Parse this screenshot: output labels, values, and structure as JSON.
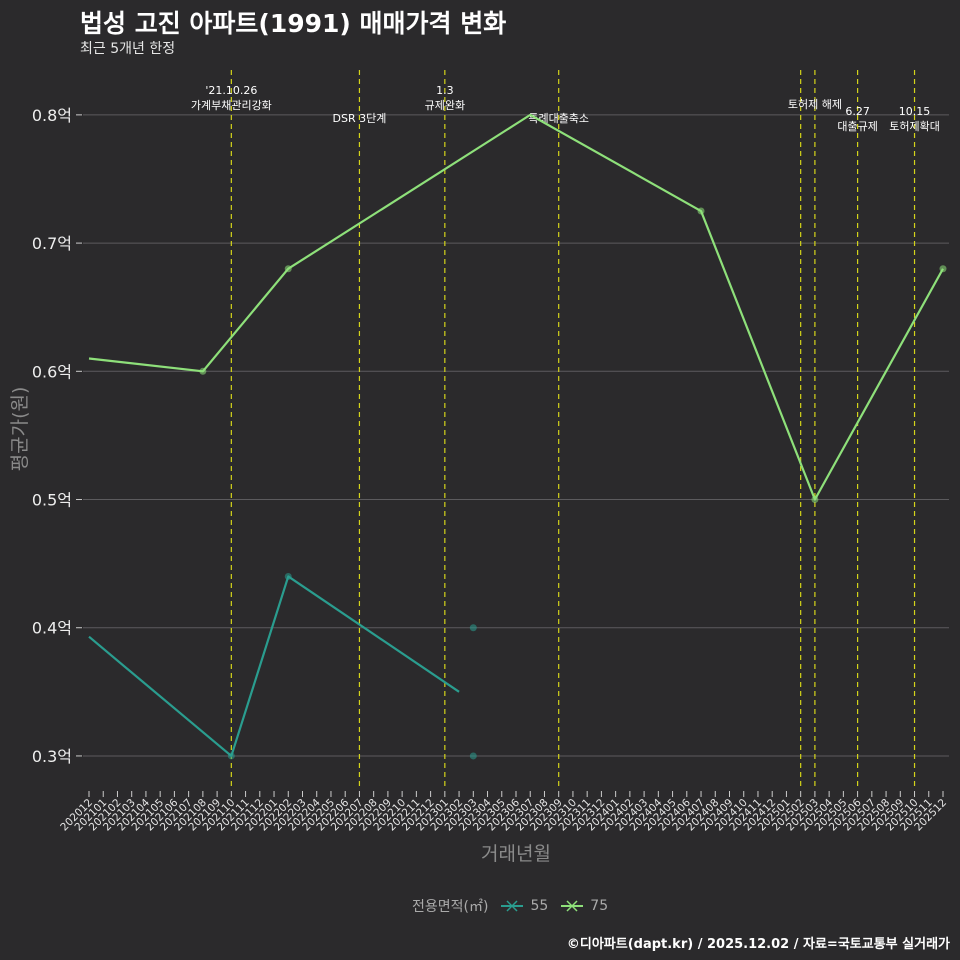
{
  "title": "법성 고진 아파트(1991) 매매가격 변화",
  "subtitle": "최근 5개년 한정",
  "caption": "©디아파트(dapt.kr) / 2025.12.02 / 자료=국토교통부 실거래가",
  "legend": {
    "title": "전용면적(㎡)",
    "entries": [
      {
        "label": "55",
        "color": "#2a9d8f"
      },
      {
        "label": "75",
        "color": "#8ee07a"
      }
    ]
  },
  "chart_data": {
    "type": "line",
    "title": "법성 고진 아파트(1991) 매매가격 변화",
    "xlabel": "거래년월",
    "ylabel": "평균가(원)",
    "ylim": [
      0.275,
      0.835
    ],
    "yticks": [
      {
        "value": 0.3,
        "label": "0.3억"
      },
      {
        "value": 0.4,
        "label": "0.4억"
      },
      {
        "value": 0.5,
        "label": "0.5억"
      },
      {
        "value": 0.6,
        "label": "0.6억"
      },
      {
        "value": 0.7,
        "label": "0.7억"
      },
      {
        "value": 0.8,
        "label": "0.8억"
      }
    ],
    "categories": [
      "202012",
      "202101",
      "202102",
      "202103",
      "202104",
      "202105",
      "202106",
      "202107",
      "202108",
      "202109",
      "202110",
      "202111",
      "202112",
      "202201",
      "202202",
      "202203",
      "202204",
      "202205",
      "202206",
      "202207",
      "202208",
      "202209",
      "202210",
      "202211",
      "202212",
      "202301",
      "202302",
      "202303",
      "202304",
      "202305",
      "202306",
      "202307",
      "202308",
      "202309",
      "202310",
      "202311",
      "202312",
      "202401",
      "202402",
      "202403",
      "202404",
      "202405",
      "202406",
      "202407",
      "202408",
      "202409",
      "202410",
      "202411",
      "202412",
      "202501",
      "202502",
      "202503",
      "202504",
      "202505",
      "202506",
      "202507",
      "202508",
      "202509",
      "202510",
      "202511",
      "202512"
    ],
    "series": [
      {
        "name": "55",
        "color": "#2a9d8f",
        "line": [
          {
            "x": "202012",
            "y": 0.393
          },
          {
            "x": "202110",
            "y": 0.3
          },
          {
            "x": "202202",
            "y": 0.44
          },
          {
            "x": "202302",
            "y": 0.35
          }
        ],
        "points": [
          {
            "x": "202110",
            "y": 0.3
          },
          {
            "x": "202202",
            "y": 0.44
          },
          {
            "x": "202303",
            "y": 0.4
          },
          {
            "x": "202303",
            "y": 0.3
          }
        ]
      },
      {
        "name": "75",
        "color": "#8ee07a",
        "line": [
          {
            "x": "202012",
            "y": 0.61
          },
          {
            "x": "202108",
            "y": 0.6
          },
          {
            "x": "202202",
            "y": 0.68
          },
          {
            "x": "202307",
            "y": 0.8
          },
          {
            "x": "202407",
            "y": 0.725
          },
          {
            "x": "202503",
            "y": 0.5
          },
          {
            "x": "202512",
            "y": 0.68
          }
        ],
        "points": [
          {
            "x": "202108",
            "y": 0.6
          },
          {
            "x": "202202",
            "y": 0.68
          },
          {
            "x": "202407",
            "y": 0.725
          },
          {
            "x": "202503",
            "y": 0.5
          },
          {
            "x": "202512",
            "y": 0.68
          }
        ]
      }
    ],
    "events": [
      {
        "x": "202110",
        "lines": [
          "'21.10.26",
          "가계부채관리강화"
        ],
        "row": 0
      },
      {
        "x": "202207",
        "lines": [
          "DSR 3단계"
        ],
        "row": 2
      },
      {
        "x": "202301",
        "lines": [
          "1.3",
          "규제완화"
        ],
        "row": 0
      },
      {
        "x": "202309",
        "lines": [
          "특례대출축소"
        ],
        "row": 2
      },
      {
        "x": "202502",
        "lines": [],
        "row": 1
      },
      {
        "x": "202503",
        "lines": [
          "토허제 해제"
        ],
        "row": 1
      },
      {
        "x": "202506",
        "lines": [
          "6.27",
          "대출규제"
        ],
        "row": 1.5
      },
      {
        "x": "202510",
        "lines": [
          "10.15",
          "토허제확대"
        ],
        "row": 1.5
      }
    ]
  }
}
